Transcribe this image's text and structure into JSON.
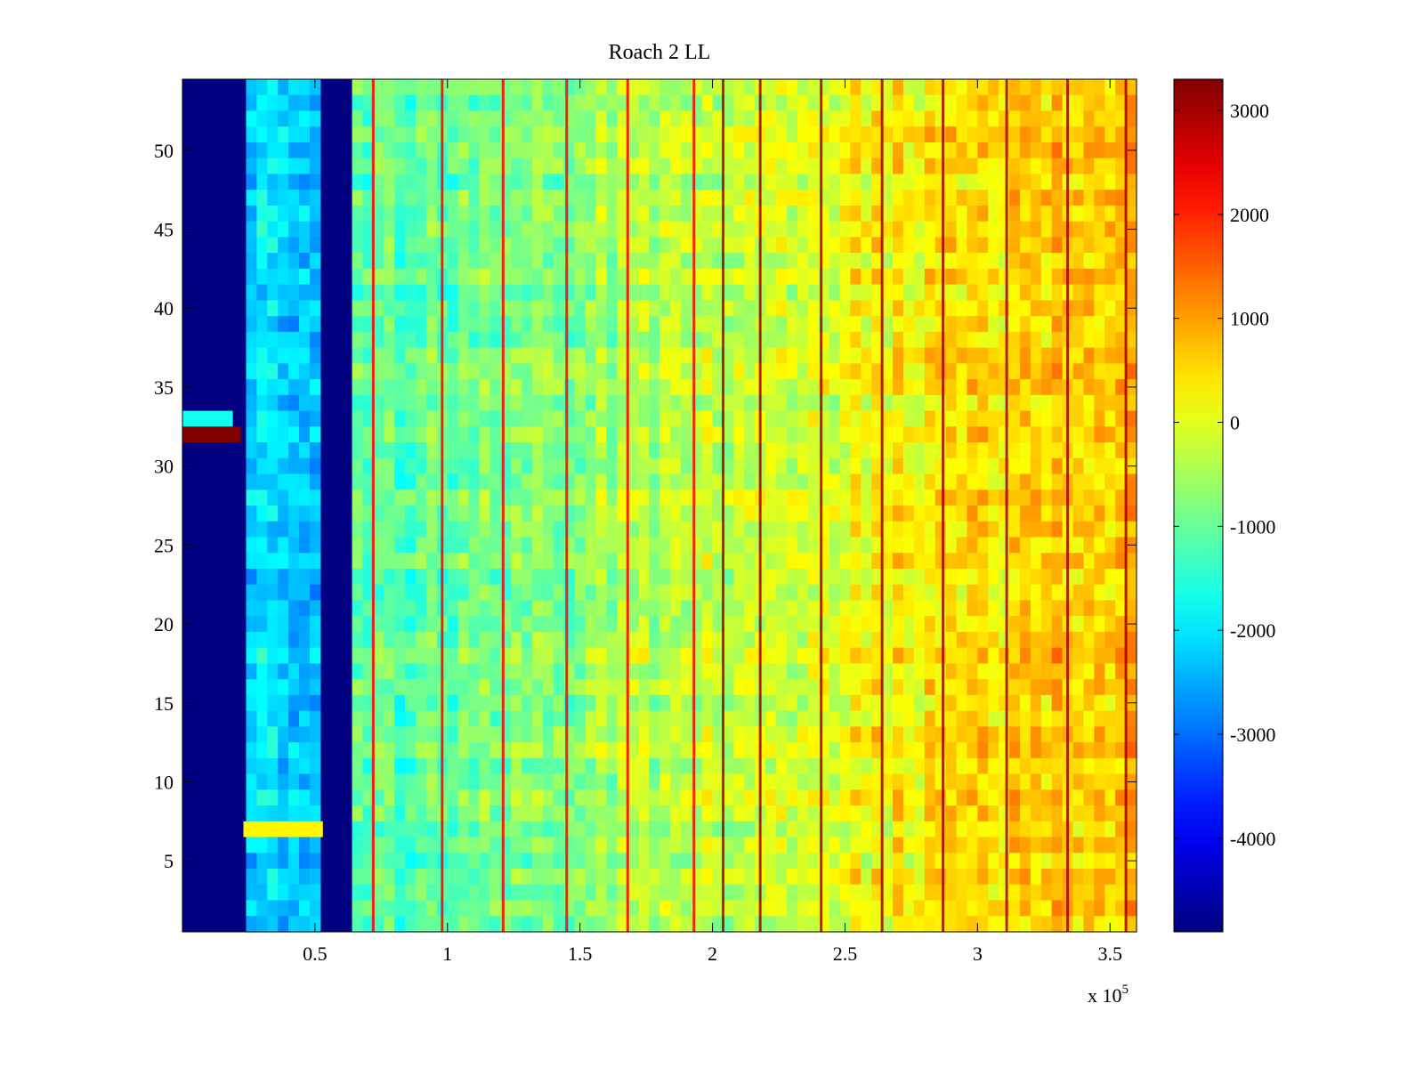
{
  "chart_data": {
    "type": "heatmap",
    "title": "Roach 2 LL",
    "xlabel": "",
    "ylabel": "",
    "x_range": [
      0,
      360000
    ],
    "y_range": [
      0.5,
      54.5
    ],
    "x_ticks": [
      50000,
      100000,
      150000,
      200000,
      250000,
      300000,
      350000
    ],
    "x_tick_labels": [
      "0.5",
      "1",
      "1.5",
      "2",
      "2.5",
      "3",
      "3.5"
    ],
    "x_multiplier_text": "x 10",
    "x_multiplier_exponent": "5",
    "y_ticks": [
      5,
      10,
      15,
      20,
      25,
      30,
      35,
      40,
      45,
      50
    ],
    "y_tick_labels": [
      "5",
      "10",
      "15",
      "20",
      "25",
      "30",
      "35",
      "40",
      "45",
      "50"
    ],
    "rows": 54,
    "colorbar": {
      "range": [
        -4900,
        3300
      ],
      "ticks": [
        3000,
        2000,
        1000,
        0,
        -1000,
        -2000,
        -3000,
        -4000
      ],
      "tick_labels": [
        "3000",
        "2000",
        "1000",
        "0",
        "-1000",
        "-2000",
        "-3000",
        "-4000"
      ],
      "colormap": "jet"
    },
    "regions": [
      {
        "x": [
          0,
          23000
        ],
        "value": -4900,
        "description_value": "floor"
      },
      {
        "x": [
          23000,
          53000
        ],
        "value": -2200
      },
      {
        "x": [
          53000,
          65000
        ],
        "value": -4900
      },
      {
        "x": [
          65000,
          360000
        ],
        "value_start": -1300,
        "value_end": 900
      }
    ],
    "hot_rows": [
      {
        "row": 32,
        "x": [
          0,
          22000
        ],
        "value": 3300
      },
      {
        "row": 33,
        "x": [
          0,
          19000
        ],
        "value": -1700
      },
      {
        "row": 7,
        "x": [
          23000,
          53000
        ],
        "value": 300
      }
    ],
    "hot_columns": [
      72000,
      98000,
      121000,
      145000,
      168000,
      193000,
      204000,
      218000,
      241000,
      264000,
      287000,
      311000,
      334000,
      356000
    ],
    "colors": {
      "background": "#ffffff",
      "axes": "#000000"
    }
  }
}
